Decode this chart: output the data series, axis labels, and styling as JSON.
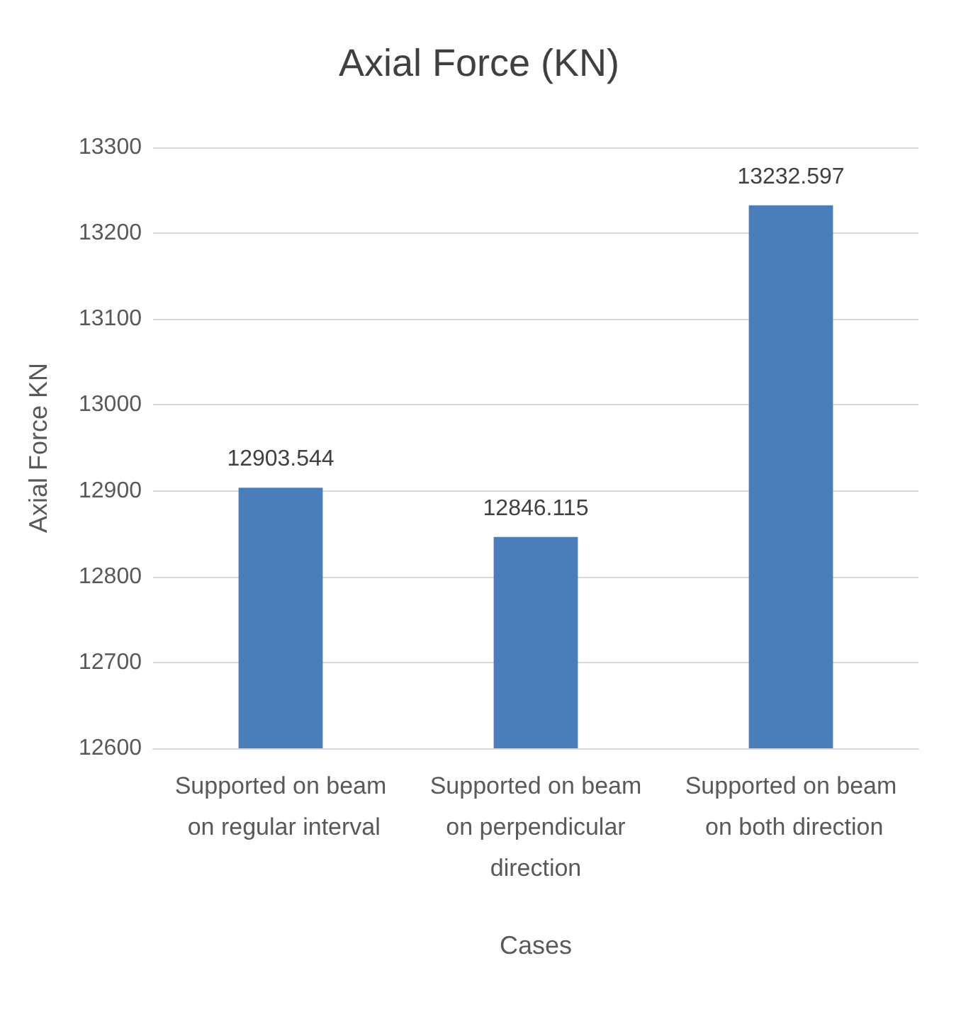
{
  "chart_data": {
    "type": "bar",
    "title": "Axial Force (KN)",
    "xlabel": "Cases",
    "ylabel": "Axial Force KN",
    "categories": [
      "Supported on beam on regular interval",
      "Supported on beam on perpendicular direction",
      "Supported on beam on both direction"
    ],
    "values": [
      12903.544,
      12846.115,
      13232.597
    ],
    "color": "#4a7ebb",
    "ylim": [
      12600,
      13300
    ],
    "yticks": [
      12600,
      12700,
      12800,
      12900,
      13000,
      13100,
      13200,
      13300
    ],
    "grid": "y",
    "data_labels": true
  }
}
